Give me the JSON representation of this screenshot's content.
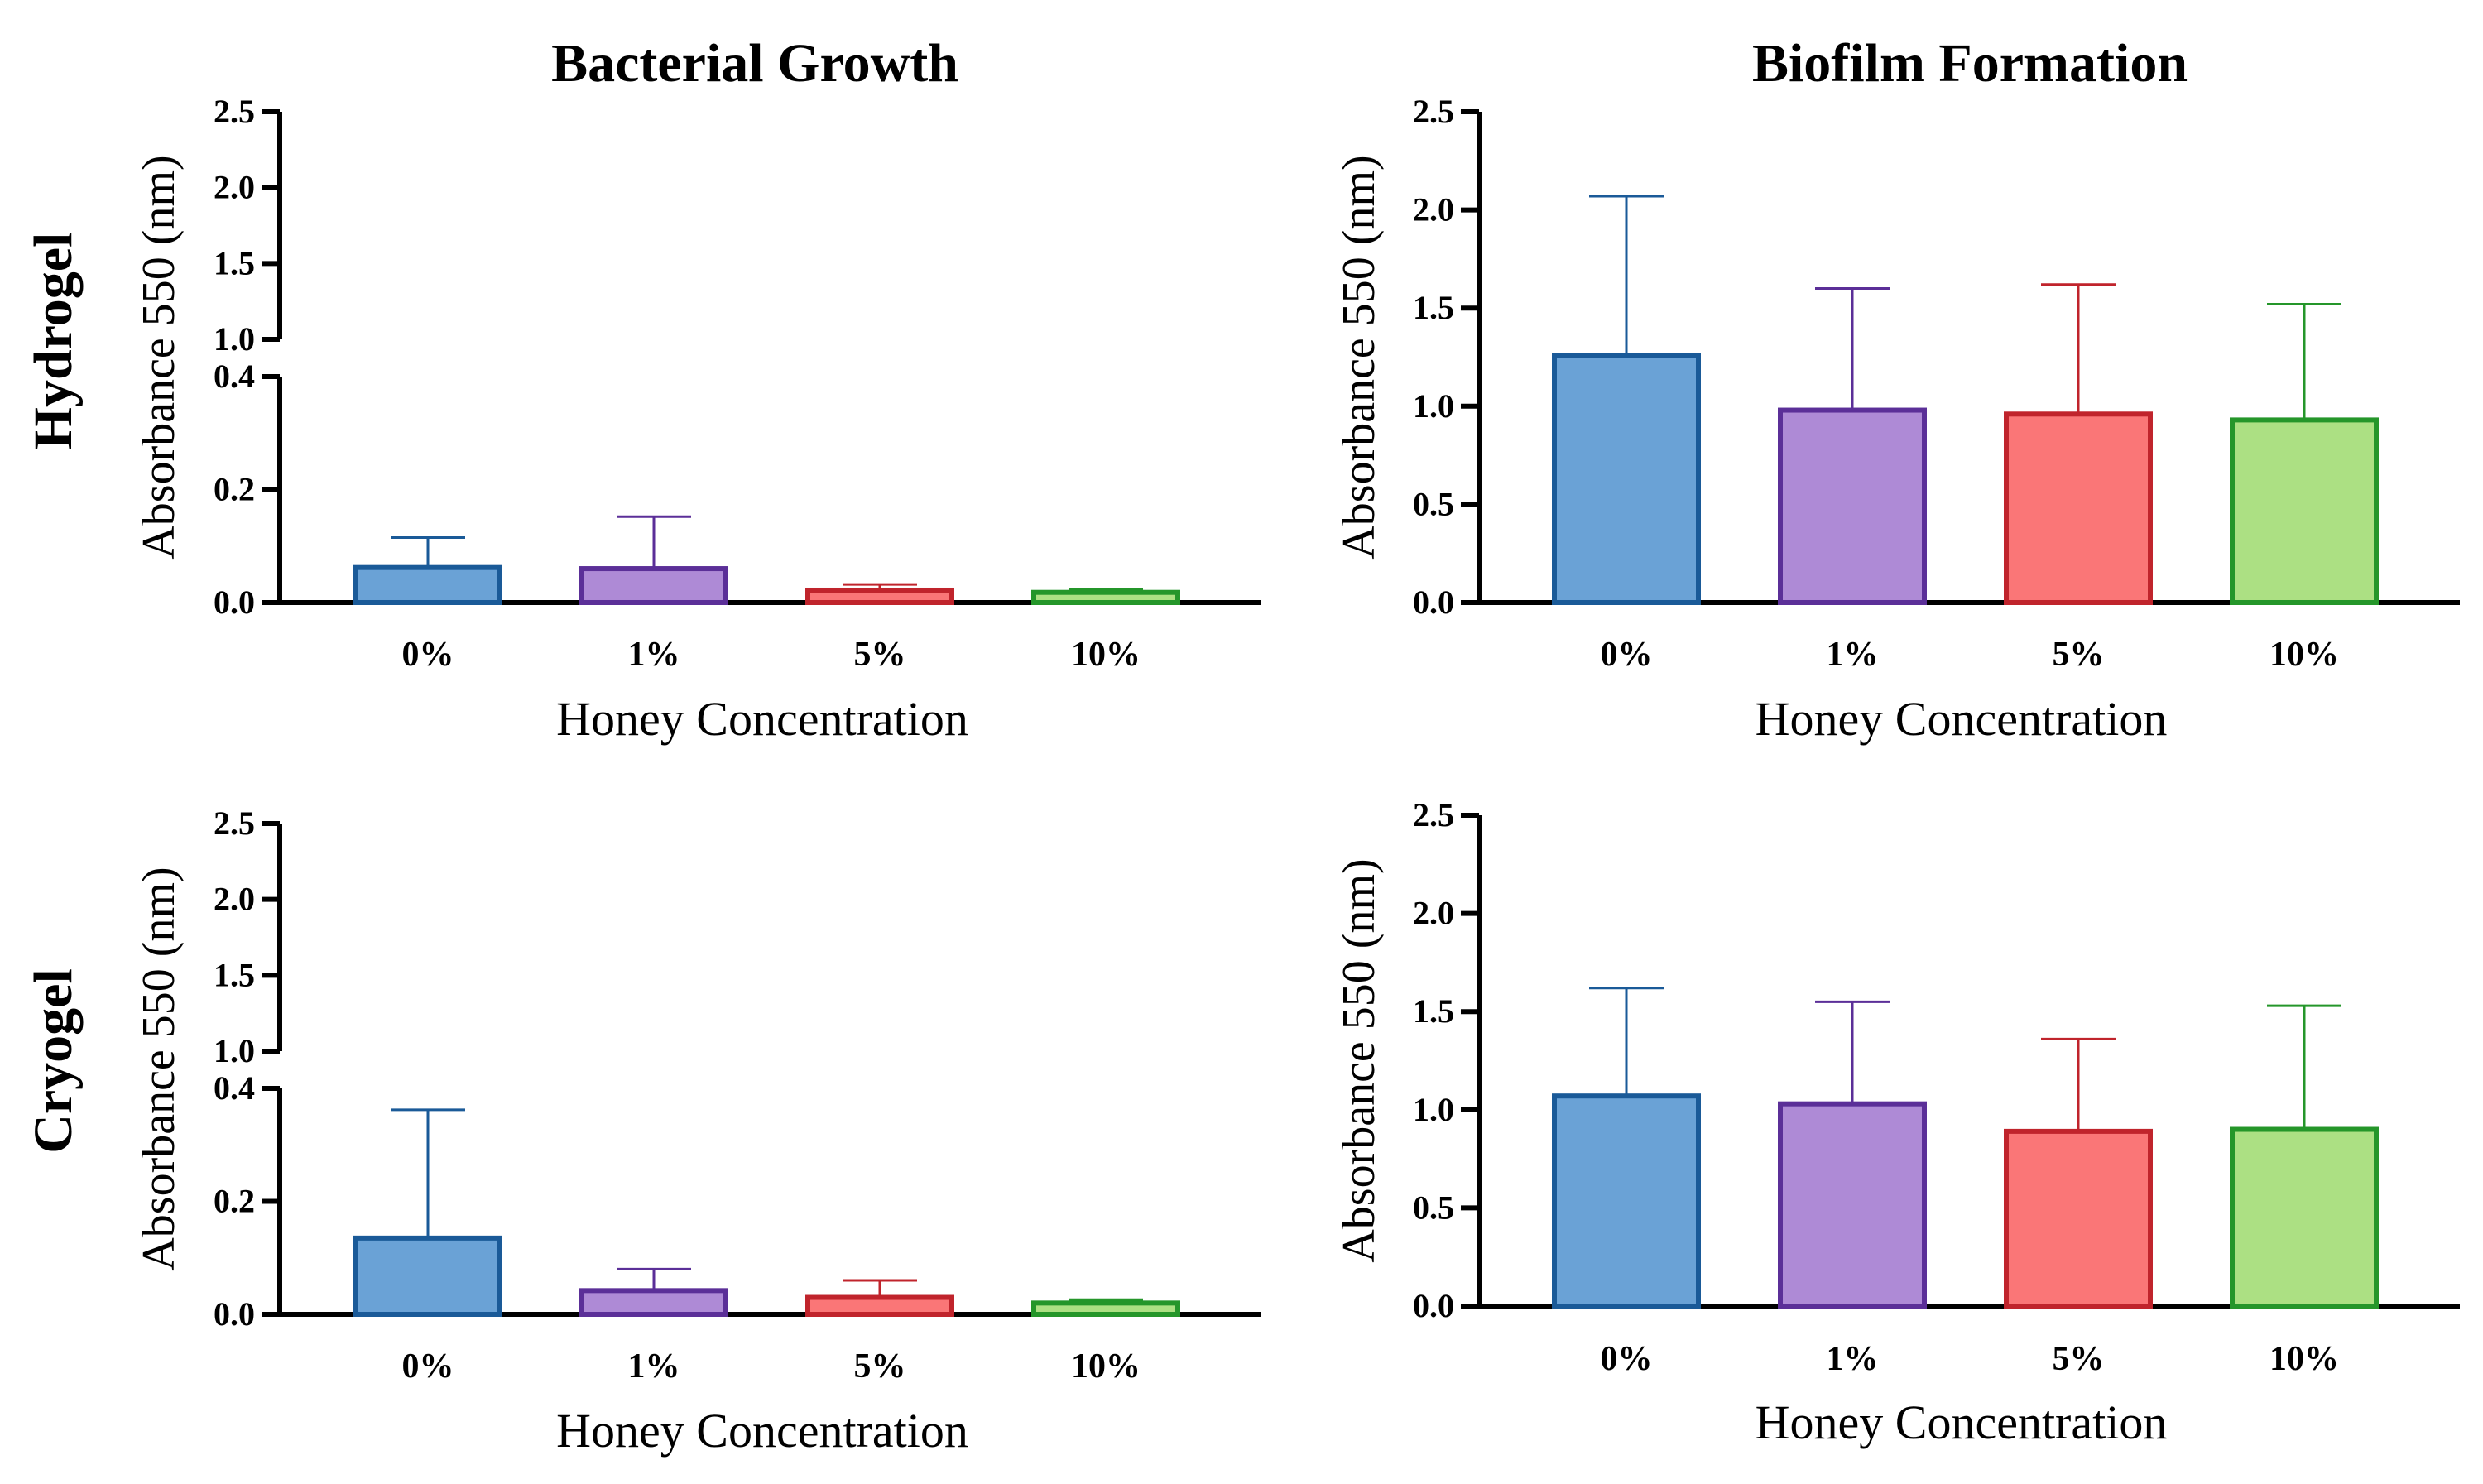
{
  "figure": {
    "col_titles": [
      "Bacterial Growth",
      "Biofilm Formation"
    ],
    "row_labels": [
      "Hydrogel",
      "Cryogel"
    ]
  },
  "colors": {
    "bar_fills": [
      "#6aa2d6",
      "#ae8ad6",
      "#fa7677",
      "#ace083"
    ],
    "bar_edges": [
      "#1a5a98",
      "#5b2f98",
      "#c0242c",
      "#25962a"
    ]
  },
  "chart_data": [
    {
      "type": "bar",
      "title": "Bacterial Growth",
      "row": "Hydrogel",
      "xlabel": "Honey Concentration",
      "ylabel": "Absorbance 550 (nm)",
      "categories": [
        "0%",
        "1%",
        "5%",
        "10%"
      ],
      "values": [
        0.062,
        0.06,
        0.022,
        0.018
      ],
      "errors": [
        0.053,
        0.092,
        0.01,
        0.005
      ],
      "broken_axis": true,
      "lower_ylim": [
        0,
        0.4
      ],
      "upper_ylim": [
        1.0,
        2.5
      ],
      "yticks": [
        0.0,
        0.2,
        0.4,
        1.0,
        1.5,
        2.0,
        2.5
      ],
      "ytick_labels": [
        "0.0",
        "0.2",
        "0.4",
        "1.0",
        "1.5",
        "2.0",
        "2.5"
      ]
    },
    {
      "type": "bar",
      "title": "Biofilm Formation",
      "row": "Hydrogel",
      "xlabel": "Honey Concentration",
      "ylabel": "Absorbance 550 (nm)",
      "categories": [
        "0%",
        "1%",
        "5%",
        "10%"
      ],
      "values": [
        1.26,
        0.98,
        0.96,
        0.93
      ],
      "errors": [
        0.81,
        0.62,
        0.66,
        0.59
      ],
      "broken_axis": false,
      "ylim": [
        0,
        2.5
      ],
      "yticks": [
        0.0,
        0.5,
        1.0,
        1.5,
        2.0,
        2.5
      ],
      "ytick_labels": [
        "0.0",
        "0.5",
        "1.0",
        "1.5",
        "2.0",
        "2.5"
      ]
    },
    {
      "type": "bar",
      "title": "Bacterial Growth",
      "row": "Cryogel",
      "xlabel": "Honey Concentration",
      "ylabel": "Absorbance 550 (nm)",
      "categories": [
        "0%",
        "1%",
        "5%",
        "10%"
      ],
      "values": [
        0.135,
        0.042,
        0.03,
        0.02
      ],
      "errors": [
        0.227,
        0.038,
        0.03,
        0.006
      ],
      "broken_axis": true,
      "lower_ylim": [
        0,
        0.4
      ],
      "upper_ylim": [
        1.0,
        2.5
      ],
      "yticks": [
        0.0,
        0.2,
        0.4,
        1.0,
        1.5,
        2.0,
        2.5
      ],
      "ytick_labels": [
        "0.0",
        "0.2",
        "0.4",
        "1.0",
        "1.5",
        "2.0",
        "2.5"
      ]
    },
    {
      "type": "bar",
      "title": "Biofilm Formation",
      "row": "Cryogel",
      "xlabel": "Honey Concentration",
      "ylabel": "Absorbance 550 (nm)",
      "categories": [
        "0%",
        "1%",
        "5%",
        "10%"
      ],
      "values": [
        1.07,
        1.03,
        0.89,
        0.9
      ],
      "errors": [
        0.55,
        0.52,
        0.47,
        0.63
      ],
      "broken_axis": false,
      "ylim": [
        0,
        2.5
      ],
      "yticks": [
        0.0,
        0.5,
        1.0,
        1.5,
        2.0,
        2.5
      ],
      "ytick_labels": [
        "0.0",
        "0.5",
        "1.0",
        "1.5",
        "2.0",
        "2.5"
      ]
    }
  ]
}
